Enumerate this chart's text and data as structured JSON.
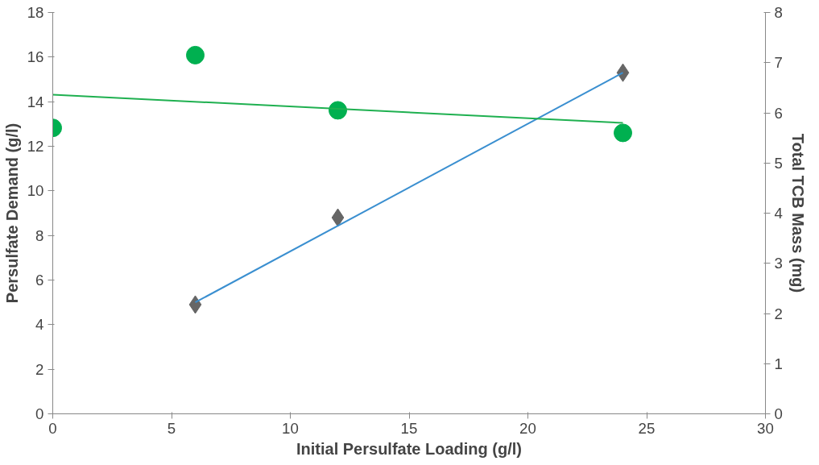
{
  "chart_data": {
    "type": "scatter",
    "xlabel": "Initial Persulfate Loading (g/l)",
    "ylabel": "Persulfate Demand (g/l)",
    "y2label": "Total TCB Mass (mg)",
    "xlim": [
      0,
      30
    ],
    "xticks": [
      0,
      5,
      10,
      15,
      20,
      25,
      30
    ],
    "ylim": [
      0,
      18
    ],
    "yticks": [
      0,
      2,
      4,
      6,
      8,
      10,
      12,
      14,
      16,
      18
    ],
    "y2lim": [
      0,
      8
    ],
    "y2ticks": [
      0,
      1,
      2,
      3,
      4,
      5,
      6,
      7,
      8
    ],
    "grid": false,
    "series": [
      {
        "marker": "diamond",
        "color": "#666666",
        "x": [
          6,
          12,
          24
        ],
        "values": [
          4.9,
          8.8,
          15.3
        ]
      },
      {
        "type": "line",
        "marker": "none",
        "color": "#3a8fd0",
        "x": [
          6,
          24
        ],
        "values": [
          5.0,
          15.3
        ]
      },
      {
        "marker": "circle",
        "color": "#00b050",
        "axis": "y2",
        "x": [
          0,
          6,
          12,
          24
        ],
        "values": [
          5.7,
          7.15,
          6.05,
          5.6
        ]
      },
      {
        "type": "line",
        "marker": "none",
        "color": "#1fb050",
        "axis": "y2",
        "x": [
          0,
          24
        ],
        "values": [
          6.36,
          5.8
        ]
      }
    ]
  }
}
